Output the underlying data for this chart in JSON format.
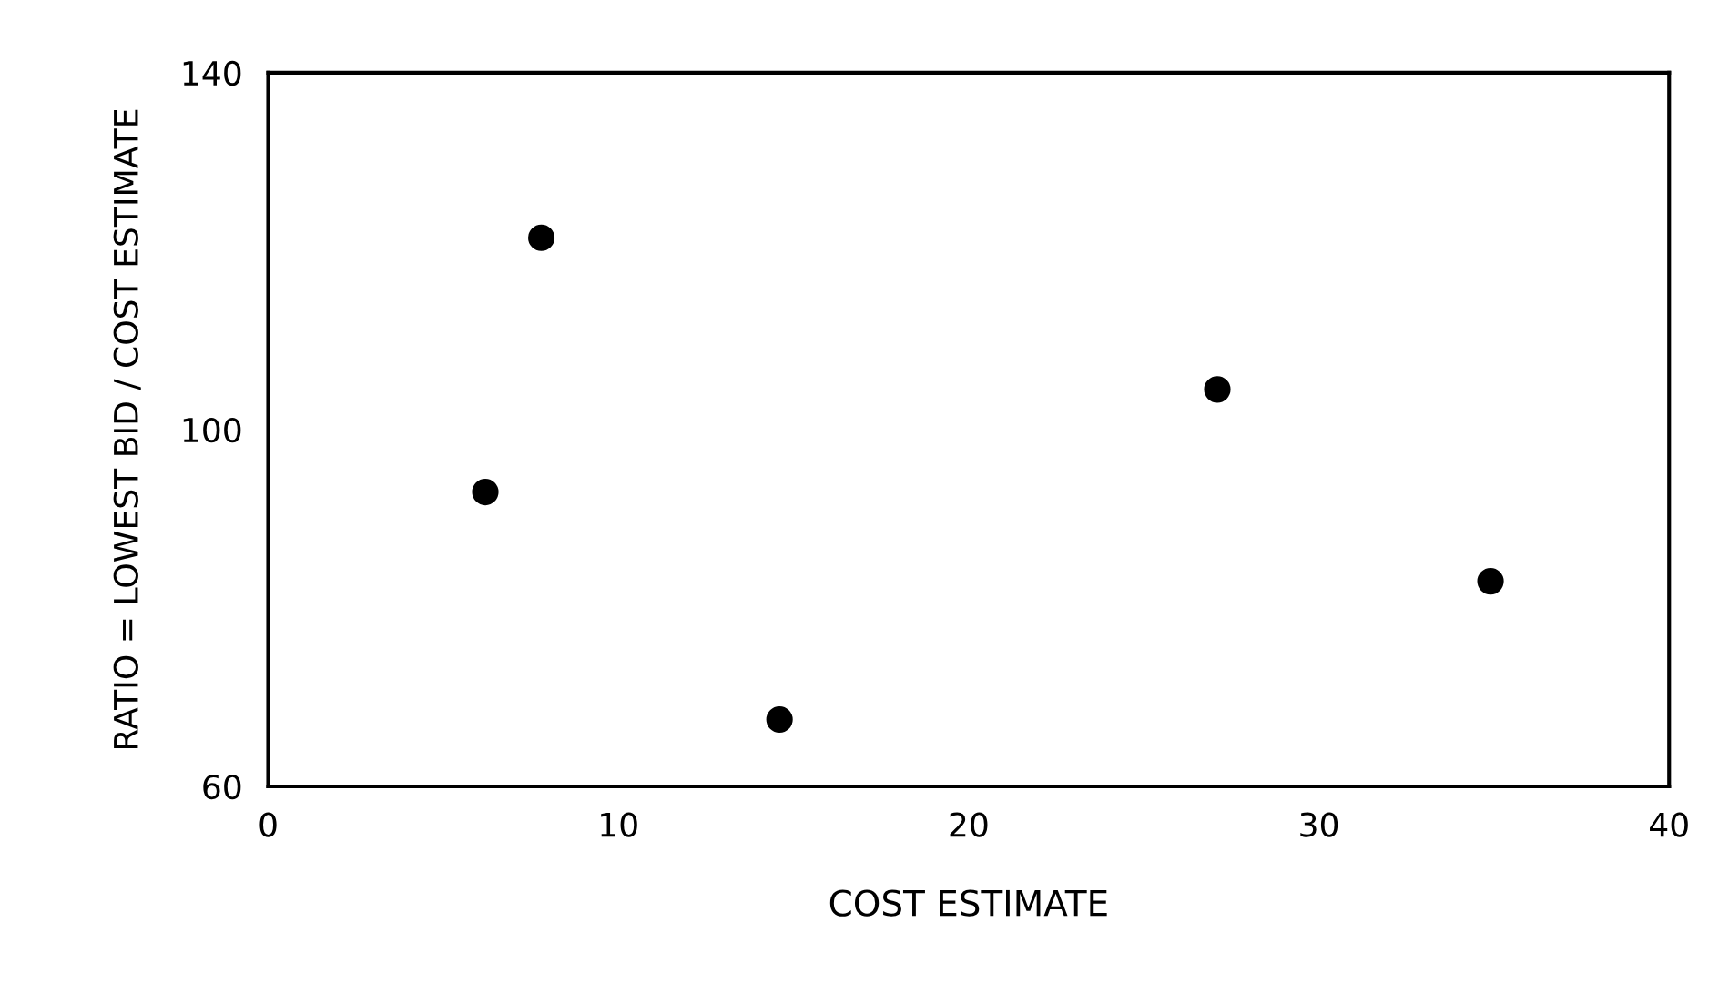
{
  "chart_data": {
    "type": "scatter",
    "xlabel": "COST ESTIMATE",
    "ylabel": "RATIO = LOWEST BID / COST ESTIMATE",
    "x": [
      6.2,
      7.8,
      14.6,
      27.1,
      34.9
    ],
    "values": [
      93,
      121.5,
      67.5,
      104.5,
      83
    ],
    "color": "#000000",
    "marker": "circle",
    "xlim": [
      0,
      40
    ],
    "xticks": [
      0,
      10,
      20,
      30,
      40
    ],
    "ylim": [
      60,
      140
    ],
    "yticks": [
      60,
      100,
      140
    ],
    "grid": false,
    "legend": false
  }
}
